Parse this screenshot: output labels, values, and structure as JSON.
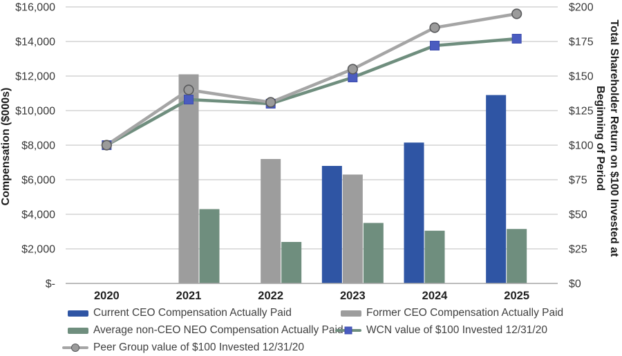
{
  "chart_data": {
    "type": "bar",
    "subtype": "combo-bar-line-dual-axis",
    "title": "",
    "categories": [
      "2020",
      "2021",
      "2022",
      "2023",
      "2024",
      "2025"
    ],
    "bar_series": [
      {
        "key": "current_ceo",
        "name": "Current CEO Compensation Actually Paid",
        "color": "#2F55A4",
        "axis": "left",
        "values": [
          null,
          null,
          null,
          6800,
          8150,
          10900
        ],
        "slots": [
          null,
          null,
          null,
          -1,
          -1,
          -1
        ]
      },
      {
        "key": "former_ceo",
        "name": "Former CEO Compensation Actually Paid",
        "color": "#9D9D9D",
        "axis": "left",
        "values": [
          null,
          12100,
          7200,
          6300,
          null,
          null
        ],
        "slots": [
          null,
          0,
          0,
          0,
          null,
          null
        ]
      },
      {
        "key": "avg_neo",
        "name": "Average non-CEO NEO Compensation Actually Paid",
        "color": "#6F8E7E",
        "axis": "left",
        "values": [
          null,
          4300,
          2400,
          3500,
          3050,
          3150
        ],
        "slots": [
          null,
          1,
          1,
          1,
          0,
          0
        ]
      }
    ],
    "line_series": [
      {
        "key": "wcn",
        "name": "WCN value of $100 Invested 12/31/20",
        "line_color": "#6F8E7E",
        "marker": "square",
        "marker_fill": "#4A5CC0",
        "marker_stroke": "#3D4DAD",
        "axis": "right",
        "values": [
          100,
          133,
          130,
          149,
          172,
          177
        ]
      },
      {
        "key": "peer",
        "name": "Peer Group value of $100 Invested 12/31/20",
        "line_color": "#A5A5A5",
        "marker": "circle",
        "marker_fill": "#9B9B9B",
        "marker_stroke": "#58595B",
        "axis": "right",
        "values": [
          100,
          140,
          131,
          155,
          185,
          195
        ]
      }
    ],
    "left_axis": {
      "title": "Compensation ($000s)",
      "ticks": [
        "$16,000",
        "$14,000",
        "$12,000",
        "$10,000",
        "$8,000",
        "$6,000",
        "$4,000",
        "$2,000",
        "$-"
      ],
      "min": 0,
      "max": 16000,
      "step": 2000
    },
    "right_axis": {
      "title_lines": [
        "Total Shareholder Return on $100 Invested at",
        "Beginning of Period"
      ],
      "ticks": [
        "$200",
        "$175",
        "$150",
        "$125",
        "$100",
        "$75",
        "$50",
        "$25",
        "$0"
      ],
      "min": 0,
      "max": 200,
      "step": 25
    },
    "grid": true,
    "legend_position": "bottom"
  },
  "legend": {
    "items": [
      {
        "label": "Current CEO Compensation Actually Paid",
        "swatch": "bar",
        "color": "#2F55A4"
      },
      {
        "label": "Former CEO Compensation Actually Paid",
        "swatch": "bar",
        "color": "#9D9D9D"
      },
      {
        "label": "Average non-CEO NEO Compensation Actually Paid",
        "swatch": "bar",
        "color": "#6F8E7E"
      },
      {
        "label": "WCN value of $100 Invested 12/31/20",
        "swatch": "line-square",
        "line_color": "#6F8E7E",
        "marker_fill": "#4A5CC0",
        "marker_stroke": "#3D4DAD"
      },
      {
        "label": "Peer Group value of $100 Invested 12/31/20",
        "swatch": "line-circle",
        "line_color": "#A5A5A5",
        "marker_fill": "#9B9B9B",
        "marker_stroke": "#58595B"
      }
    ]
  },
  "colors": {
    "background": "#FFFFFF",
    "grid": "#C9C9C9",
    "axis_line": "#A6A6A6",
    "tick_text": "#383838",
    "year_text": "#1F1F1F",
    "legend_text": "#3F3F3F"
  }
}
